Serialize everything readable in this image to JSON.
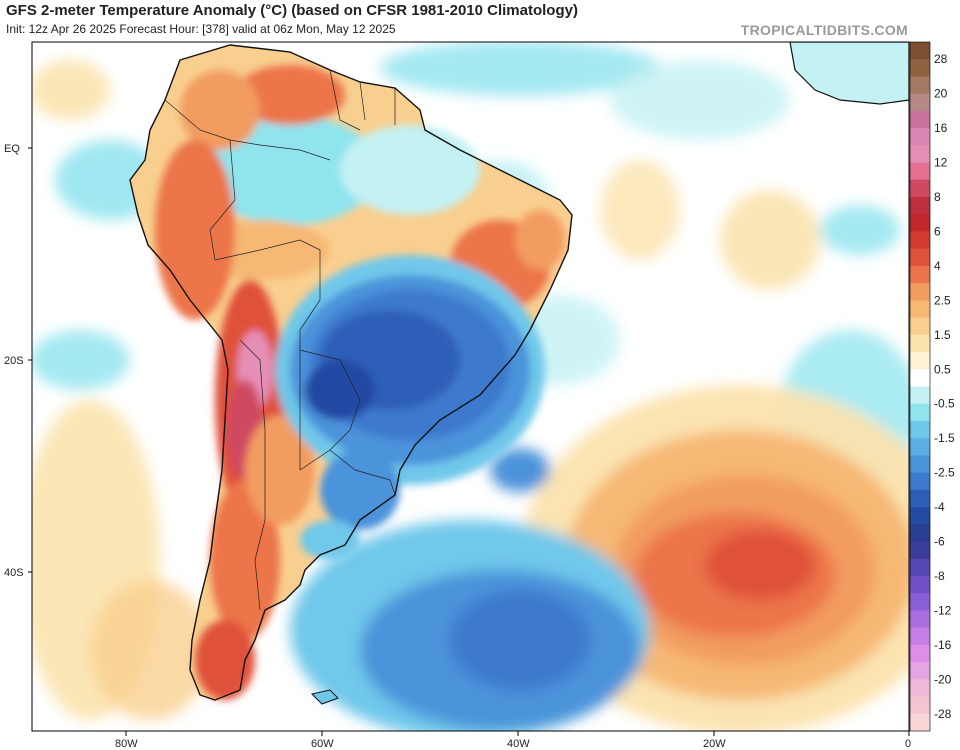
{
  "header": {
    "title": "GFS 2-meter Temperature Anomaly (°C) (based on CFSR 1981-2010 Climatology)",
    "subtitle": "Init: 12z Apr 26 2025   Forecast Hour: [378]   valid at 06z Mon, May 12 2025",
    "brand": "TROPICALTIDBITS.COM"
  },
  "axes": {
    "lat_labels": [
      "EQ",
      "20S",
      "40S"
    ],
    "lon_labels": [
      "80W",
      "60W",
      "40W",
      "20W",
      "0"
    ]
  },
  "colorbar": {
    "levels": [
      {
        "label": "28",
        "color": "#7a5030"
      },
      {
        "label": "",
        "color": "#8e6140"
      },
      {
        "label": "20",
        "color": "#a57a63"
      },
      {
        "label": "",
        "color": "#b58a86"
      },
      {
        "label": "16",
        "color": "#c8719c"
      },
      {
        "label": "",
        "color": "#d986b3"
      },
      {
        "label": "12",
        "color": "#e58fb6"
      },
      {
        "label": "",
        "color": "#e5708f"
      },
      {
        "label": "8",
        "color": "#cf4961"
      },
      {
        "label": "",
        "color": "#bd2f3f"
      },
      {
        "label": "6",
        "color": "#c0282e"
      },
      {
        "label": "",
        "color": "#d23b2f"
      },
      {
        "label": "4",
        "color": "#e0513b"
      },
      {
        "label": "",
        "color": "#ec744a"
      },
      {
        "label": "2.5",
        "color": "#f29c60"
      },
      {
        "label": "",
        "color": "#f6b875"
      },
      {
        "label": "1.5",
        "color": "#f9cf8f"
      },
      {
        "label": "",
        "color": "#fbe3ae"
      },
      {
        "label": "0.5",
        "color": "#fdf2d4"
      },
      {
        "label": "",
        "color": "#ffffff"
      },
      {
        "label": "-0.5",
        "color": "#c4f1f4"
      },
      {
        "label": "",
        "color": "#8fe4ee"
      },
      {
        "label": "-1.5",
        "color": "#6fc8ea"
      },
      {
        "label": "",
        "color": "#5aaee3"
      },
      {
        "label": "-2.5",
        "color": "#4b93da"
      },
      {
        "label": "",
        "color": "#3d79cc"
      },
      {
        "label": "-4",
        "color": "#2e5fb8"
      },
      {
        "label": "",
        "color": "#244aa2"
      },
      {
        "label": "-6",
        "color": "#2a3f94"
      },
      {
        "label": "",
        "color": "#3a3b9a"
      },
      {
        "label": "-8",
        "color": "#5648b4"
      },
      {
        "label": "",
        "color": "#7050c8"
      },
      {
        "label": "-12",
        "color": "#8a5ed6"
      },
      {
        "label": "",
        "color": "#a86ee0"
      },
      {
        "label": "-16",
        "color": "#c47ee6"
      },
      {
        "label": "",
        "color": "#dc8ee8"
      },
      {
        "label": "-20",
        "color": "#e6a4e4"
      },
      {
        "label": "",
        "color": "#efb8d8"
      },
      {
        "label": "-28",
        "color": "#f3c6cf"
      },
      {
        "label": "",
        "color": "#f8d6d6"
      }
    ]
  },
  "anomaly_palette": {
    "white": "#ffffff",
    "light_cyan": "#c4f1f4",
    "cyan": "#8fe4ee",
    "light_blue": "#6fc8ea",
    "blue": "#4b93da",
    "mid_blue": "#3d79cc",
    "dark_blue": "#2e5fb8",
    "navy": "#244aa2",
    "light_tan": "#fbe3ae",
    "tan": "#f9cf8f",
    "light_orange": "#f6b875",
    "orange": "#f29c60",
    "dark_orange": "#ec744a",
    "red_orange": "#e0513b",
    "red": "#d23b2f",
    "pink": "#e58fb6",
    "land_outline": "#111111"
  }
}
